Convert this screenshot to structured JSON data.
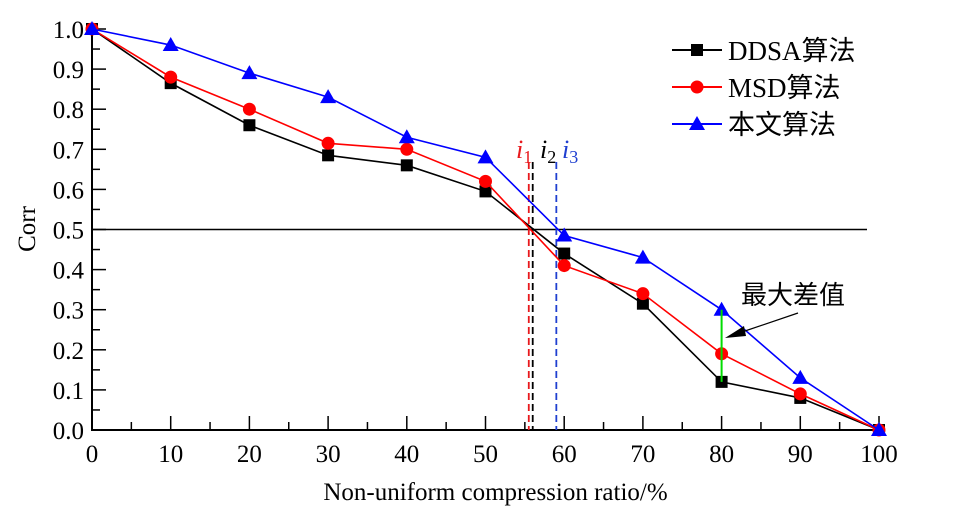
{
  "chart_data": {
    "type": "line",
    "title": "",
    "xlabel": "Non-uniform compression ratio/%",
    "ylabel": "Corr",
    "xlim": [
      0,
      100
    ],
    "ylim": [
      0,
      1.0
    ],
    "x": [
      0,
      10,
      20,
      30,
      40,
      50,
      60,
      70,
      80,
      90,
      100
    ],
    "xticks": [
      "0",
      "10",
      "20",
      "30",
      "40",
      "50",
      "60",
      "70",
      "80",
      "90",
      "100"
    ],
    "yticks": [
      "0.0",
      "0.1",
      "0.2",
      "0.3",
      "0.4",
      "0.5",
      "0.6",
      "0.7",
      "0.8",
      "0.9",
      "1.0"
    ],
    "grid": false,
    "legend_position": "top-right",
    "series": [
      {
        "name": "DDSA算法",
        "color": "#000000",
        "marker": "square",
        "values": [
          1.0,
          0.865,
          0.76,
          0.685,
          0.66,
          0.595,
          0.44,
          0.315,
          0.12,
          0.08,
          0.0
        ]
      },
      {
        "name": "MSD算法",
        "color": "#ff0000",
        "marker": "circle",
        "values": [
          1.0,
          0.88,
          0.8,
          0.715,
          0.7,
          0.62,
          0.41,
          0.34,
          0.19,
          0.09,
          0.0
        ]
      },
      {
        "name": "本文算法",
        "color": "#0000ff",
        "marker": "triangle",
        "values": [
          1.0,
          0.96,
          0.89,
          0.83,
          0.73,
          0.68,
          0.485,
          0.43,
          0.3,
          0.13,
          0.0
        ]
      }
    ],
    "reference_line": {
      "y": 0.5,
      "color": "#000000"
    },
    "threshold_lines": [
      {
        "label": "i",
        "sub": "1",
        "x": 55.5,
        "color": "#e8191d"
      },
      {
        "label": "i",
        "sub": "2",
        "x": 56.0,
        "color": "#000000"
      },
      {
        "label": "i",
        "sub": "3",
        "x": 59.0,
        "color": "#1f3fd0"
      }
    ],
    "max_diff": {
      "x": 80,
      "y_low": 0.12,
      "y_high": 0.3,
      "color": "#00dd00",
      "label": "最大差值"
    }
  }
}
